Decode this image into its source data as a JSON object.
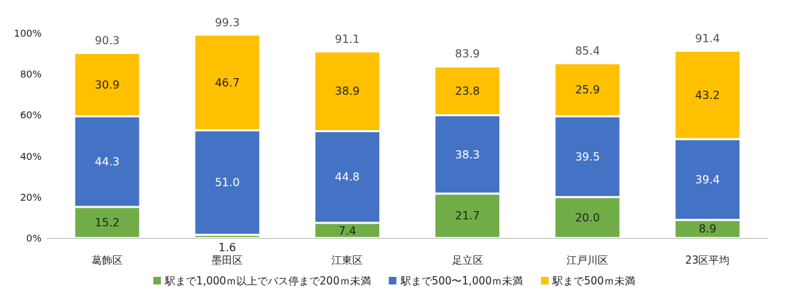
{
  "chart_data": {
    "type": "bar",
    "stacked": true,
    "categories": [
      "葛飾区",
      "墨田区",
      "江東区",
      "足立区",
      "江戸川区",
      "23区平均"
    ],
    "series": [
      {
        "name": "駅まで1,000ｍ以上でバス停まで200ｍ未満",
        "color": "#70ad47",
        "values": [
          15.2,
          1.6,
          7.4,
          21.7,
          20.0,
          8.9
        ],
        "value_labels": [
          "15.2",
          "1.6",
          "7.4",
          "21.7",
          "20.0",
          "8.9"
        ]
      },
      {
        "name": "駅まで500〜1,000ｍ未満",
        "color": "#4472c4",
        "values": [
          44.3,
          51.0,
          44.8,
          38.3,
          39.5,
          39.4
        ],
        "value_labels": [
          "44.3",
          "51.0",
          "44.8",
          "38.3",
          "39.5",
          "39.4"
        ]
      },
      {
        "name": "駅まで500ｍ未満",
        "color": "#ffc000",
        "values": [
          30.9,
          46.7,
          38.9,
          23.8,
          25.9,
          43.2
        ],
        "value_labels": [
          "30.9",
          "46.7",
          "38.9",
          "23.8",
          "25.9",
          "43.2"
        ]
      }
    ],
    "totals": [
      "90.3",
      "99.3",
      "91.1",
      "83.9",
      "85.4",
      "91.4"
    ],
    "ylim": [
      0,
      100
    ],
    "yticks": [
      {
        "value": 0,
        "label": "0%"
      },
      {
        "value": 20,
        "label": "20%"
      },
      {
        "value": 40,
        "label": "40%"
      },
      {
        "value": 60,
        "label": "60%"
      },
      {
        "value": 80,
        "label": "80%"
      },
      {
        "value": 100,
        "label": "100%"
      }
    ],
    "grid": false,
    "legend": "bottom"
  }
}
